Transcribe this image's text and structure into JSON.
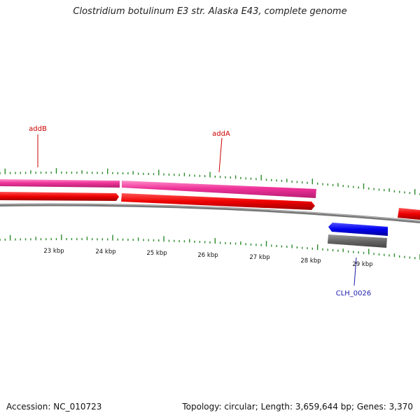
{
  "title": "Clostridium botulinum E3 str. Alaska E43, complete genome",
  "footer": {
    "accession": "Accession: NC_010723",
    "summary": "Topology: circular; Length: 3,659,644 bp; Genes: 3,370"
  },
  "scale": {
    "tick_labels": [
      "23 kbp",
      "24 kbp",
      "25 kbp",
      "26 kbp",
      "27 kbp",
      "28 kbp",
      "29 kbp"
    ]
  },
  "genes": [
    {
      "label": "addB",
      "color": "#cc0000"
    },
    {
      "label": "addA",
      "color": "#cc0000"
    },
    {
      "label": "CLH_0026",
      "color": "#1a1aaa"
    }
  ],
  "colors": {
    "gene_pink": "#ee3399",
    "cds_red": "#ee0000",
    "backbone_gray": "#888888",
    "reverse_blue": "#0000ee",
    "reverse_gray": "#666666",
    "tick_green": "#2a8a2a"
  }
}
